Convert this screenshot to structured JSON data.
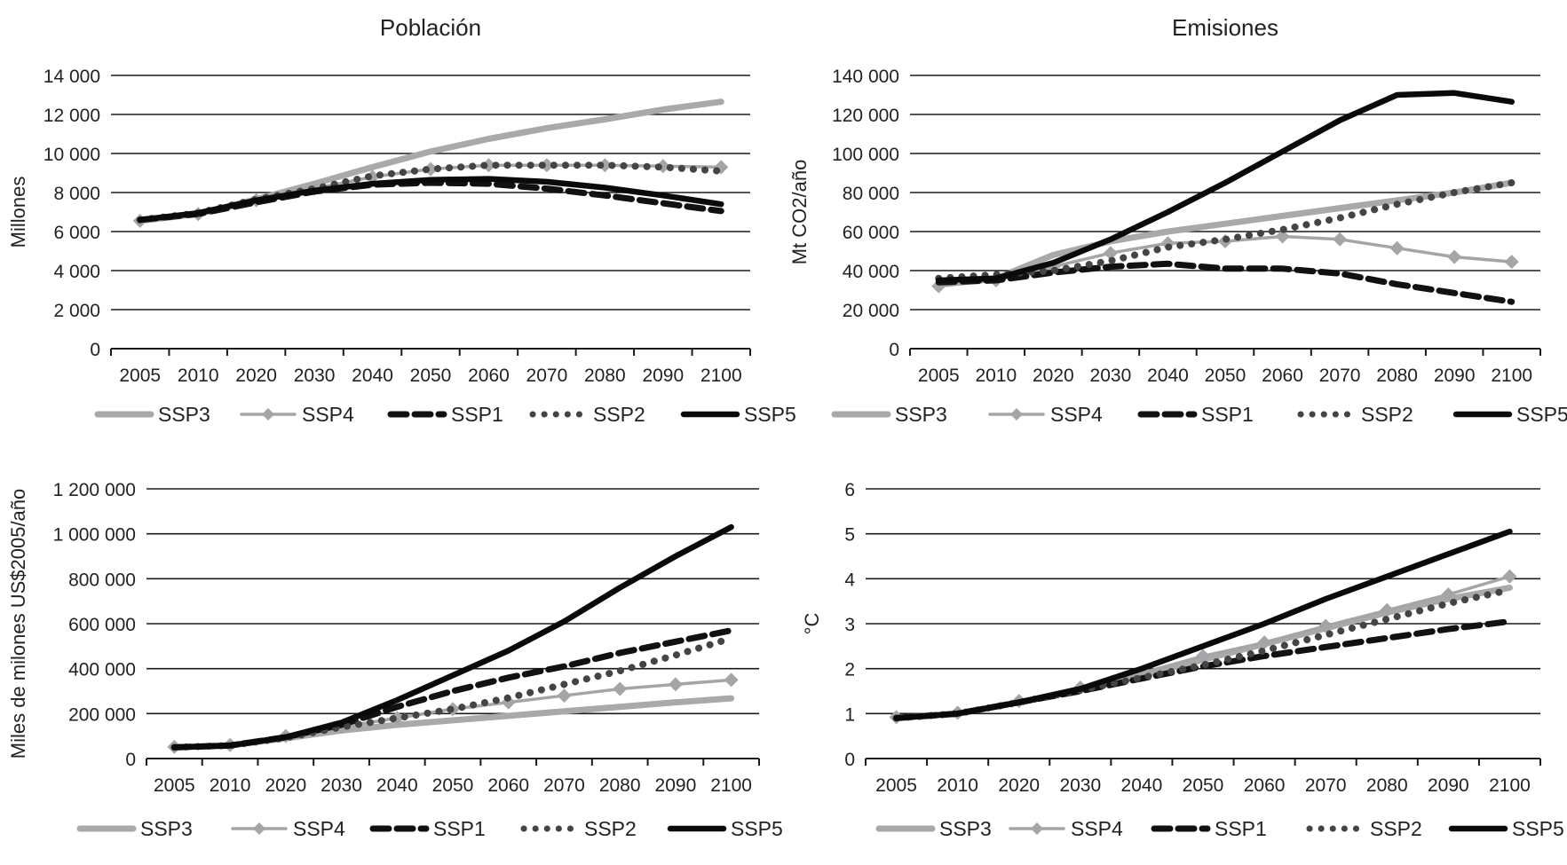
{
  "styles": {
    "SSP3": {
      "color": "#a9a9ab",
      "width": 7,
      "dash": "",
      "marker": "none"
    },
    "SSP4": {
      "color": "#a5a5a7",
      "width": 3.5,
      "dash": "",
      "marker": "diamond"
    },
    "SSP1": {
      "color": "#111111",
      "width": 7,
      "dash": "18,9",
      "marker": "none"
    },
    "SSP2": {
      "color": "#444444",
      "width": 6,
      "dash": "0.1,13",
      "marker": "none"
    },
    "SSP5": {
      "color": "#0a0a0a",
      "width": 6.5,
      "dash": "",
      "marker": "none"
    }
  },
  "chart_data": [
    {
      "id": "poblacion",
      "type": "line",
      "title": "Población",
      "xlabel": "",
      "ylabel": "Millones",
      "categories": [
        "2005",
        "2010",
        "2020",
        "2030",
        "2040",
        "2050",
        "2060",
        "2070",
        "2080",
        "2090",
        "2100"
      ],
      "ylim": [
        0,
        14000
      ],
      "yticks": [
        0,
        2000,
        4000,
        6000,
        8000,
        10000,
        12000,
        14000
      ],
      "ytick_labels": [
        "0",
        "2 000",
        "4 000",
        "6 000",
        "8 000",
        "10 000",
        "12 000",
        "14 000"
      ],
      "grid": true,
      "legend_position": "bottom",
      "legend": [
        "SSP3",
        "SSP4",
        "SSP1",
        "SSP2",
        "SSP5"
      ],
      "series": [
        {
          "name": "SSP3",
          "values": [
            6550,
            6900,
            7650,
            8450,
            9300,
            10100,
            10750,
            11300,
            11750,
            12250,
            12650
          ]
        },
        {
          "name": "SSP4",
          "values": [
            6550,
            6900,
            7600,
            8200,
            8800,
            9200,
            9400,
            9400,
            9400,
            9350,
            9300
          ]
        },
        {
          "name": "SSP1",
          "values": [
            6600,
            6900,
            7500,
            8050,
            8400,
            8500,
            8450,
            8200,
            7850,
            7450,
            7050
          ]
        },
        {
          "name": "SSP2",
          "values": [
            6600,
            6950,
            7650,
            8200,
            8850,
            9200,
            9400,
            9400,
            9400,
            9300,
            9100
          ]
        },
        {
          "name": "SSP5",
          "values": [
            6600,
            6950,
            7600,
            8100,
            8450,
            8650,
            8700,
            8550,
            8250,
            7850,
            7400
          ]
        }
      ]
    },
    {
      "id": "emisiones",
      "type": "line",
      "title": "Emisiones",
      "xlabel": "",
      "ylabel": "Mt CO2/año",
      "categories": [
        "2005",
        "2010",
        "2020",
        "2030",
        "2040",
        "2050",
        "2060",
        "2070",
        "2080",
        "2090",
        "2100"
      ],
      "ylim": [
        0,
        140000
      ],
      "yticks": [
        0,
        20000,
        40000,
        60000,
        80000,
        100000,
        120000,
        140000
      ],
      "ytick_labels": [
        "0",
        "20 000",
        "40 000",
        "60 000",
        "80 000",
        "100 000",
        "120 000",
        "140 000"
      ],
      "grid": true,
      "legend_position": "bottom",
      "legend": [
        "SSP3",
        "SSP4",
        "SSP1",
        "SSP2",
        "SSP5"
      ],
      "series": [
        {
          "name": "SSP3",
          "values": [
            33000,
            36000,
            48000,
            55000,
            60000,
            64000,
            68000,
            72000,
            76000,
            80000,
            85000
          ]
        },
        {
          "name": "SSP4",
          "values": [
            32000,
            35000,
            42000,
            49000,
            54000,
            55000,
            57500,
            56000,
            51500,
            47000,
            44500
          ]
        },
        {
          "name": "SSP1",
          "values": [
            34000,
            35000,
            39000,
            42000,
            43500,
            41000,
            41000,
            38500,
            33000,
            28500,
            24000
          ]
        },
        {
          "name": "SSP2",
          "values": [
            36000,
            38000,
            40000,
            45000,
            52000,
            56000,
            61000,
            67000,
            74000,
            80000,
            85000
          ]
        },
        {
          "name": "SSP5",
          "values": [
            35000,
            36000,
            44000,
            56000,
            70000,
            85000,
            101000,
            117000,
            130000,
            131000,
            126500
          ]
        }
      ]
    },
    {
      "id": "pib",
      "type": "line",
      "title": "",
      "xlabel": "",
      "ylabel": "Miles de milones US$2005/año",
      "categories": [
        "2005",
        "2010",
        "2020",
        "2030",
        "2040",
        "2050",
        "2060",
        "2070",
        "2080",
        "2090",
        "2100"
      ],
      "ylim": [
        0,
        1200000
      ],
      "yticks": [
        0,
        200000,
        400000,
        600000,
        800000,
        1000000,
        1200000
      ],
      "ytick_labels": [
        "0",
        "200 000",
        "400 000",
        "600 000",
        "800 000",
        "1 000 000",
        "1 200 000"
      ],
      "grid": true,
      "legend_position": "bottom",
      "legend": [
        "SSP3",
        "SSP4",
        "SSP1",
        "SSP2",
        "SSP5"
      ],
      "series": [
        {
          "name": "SSP3",
          "values": [
            50000,
            58000,
            90000,
            125000,
            150000,
            170000,
            190000,
            210000,
            230000,
            250000,
            268000
          ]
        },
        {
          "name": "SSP4",
          "values": [
            52000,
            60000,
            100000,
            140000,
            180000,
            220000,
            250000,
            280000,
            310000,
            330000,
            350000
          ]
        },
        {
          "name": "SSP1",
          "values": [
            50000,
            58000,
            95000,
            150000,
            230000,
            300000,
            360000,
            410000,
            470000,
            520000,
            570000
          ]
        },
        {
          "name": "SSP2",
          "values": [
            50000,
            58000,
            92000,
            140000,
            180000,
            220000,
            270000,
            330000,
            390000,
            460000,
            535000
          ]
        },
        {
          "name": "SSP5",
          "values": [
            50000,
            58000,
            95000,
            160000,
            260000,
            370000,
            480000,
            610000,
            760000,
            900000,
            1030000
          ]
        }
      ]
    },
    {
      "id": "temperatura",
      "type": "line",
      "title": "",
      "xlabel": "",
      "ylabel": "°C",
      "categories": [
        "2005",
        "2010",
        "2020",
        "2030",
        "2040",
        "2050",
        "2060",
        "2070",
        "2080",
        "2090",
        "2100"
      ],
      "ylim": [
        0,
        6
      ],
      "yticks": [
        0,
        1,
        2,
        3,
        4,
        5,
        6
      ],
      "ytick_labels": [
        "0",
        "1",
        "2",
        "3",
        "4",
        "5",
        "6"
      ],
      "grid": true,
      "legend_position": "bottom",
      "legend": [
        "SSP3",
        "SSP4",
        "SSP1",
        "SSP2",
        "SSP5"
      ],
      "series": [
        {
          "name": "SSP3",
          "values": [
            0.9,
            1.0,
            1.25,
            1.55,
            1.85,
            2.2,
            2.55,
            2.9,
            3.25,
            3.55,
            3.8
          ]
        },
        {
          "name": "SSP4",
          "values": [
            0.92,
            1.02,
            1.28,
            1.58,
            1.9,
            2.28,
            2.58,
            2.95,
            3.3,
            3.65,
            4.05
          ]
        },
        {
          "name": "SSP1",
          "values": [
            0.9,
            1.0,
            1.25,
            1.5,
            1.78,
            2.05,
            2.28,
            2.48,
            2.68,
            2.88,
            3.05
          ]
        },
        {
          "name": "SSP2",
          "values": [
            0.9,
            1.0,
            1.25,
            1.52,
            1.8,
            2.08,
            2.4,
            2.75,
            3.1,
            3.45,
            3.75
          ]
        },
        {
          "name": "SSP5",
          "values": [
            0.9,
            1.0,
            1.25,
            1.55,
            2.0,
            2.5,
            3.0,
            3.55,
            4.05,
            4.55,
            5.05
          ]
        }
      ]
    }
  ]
}
